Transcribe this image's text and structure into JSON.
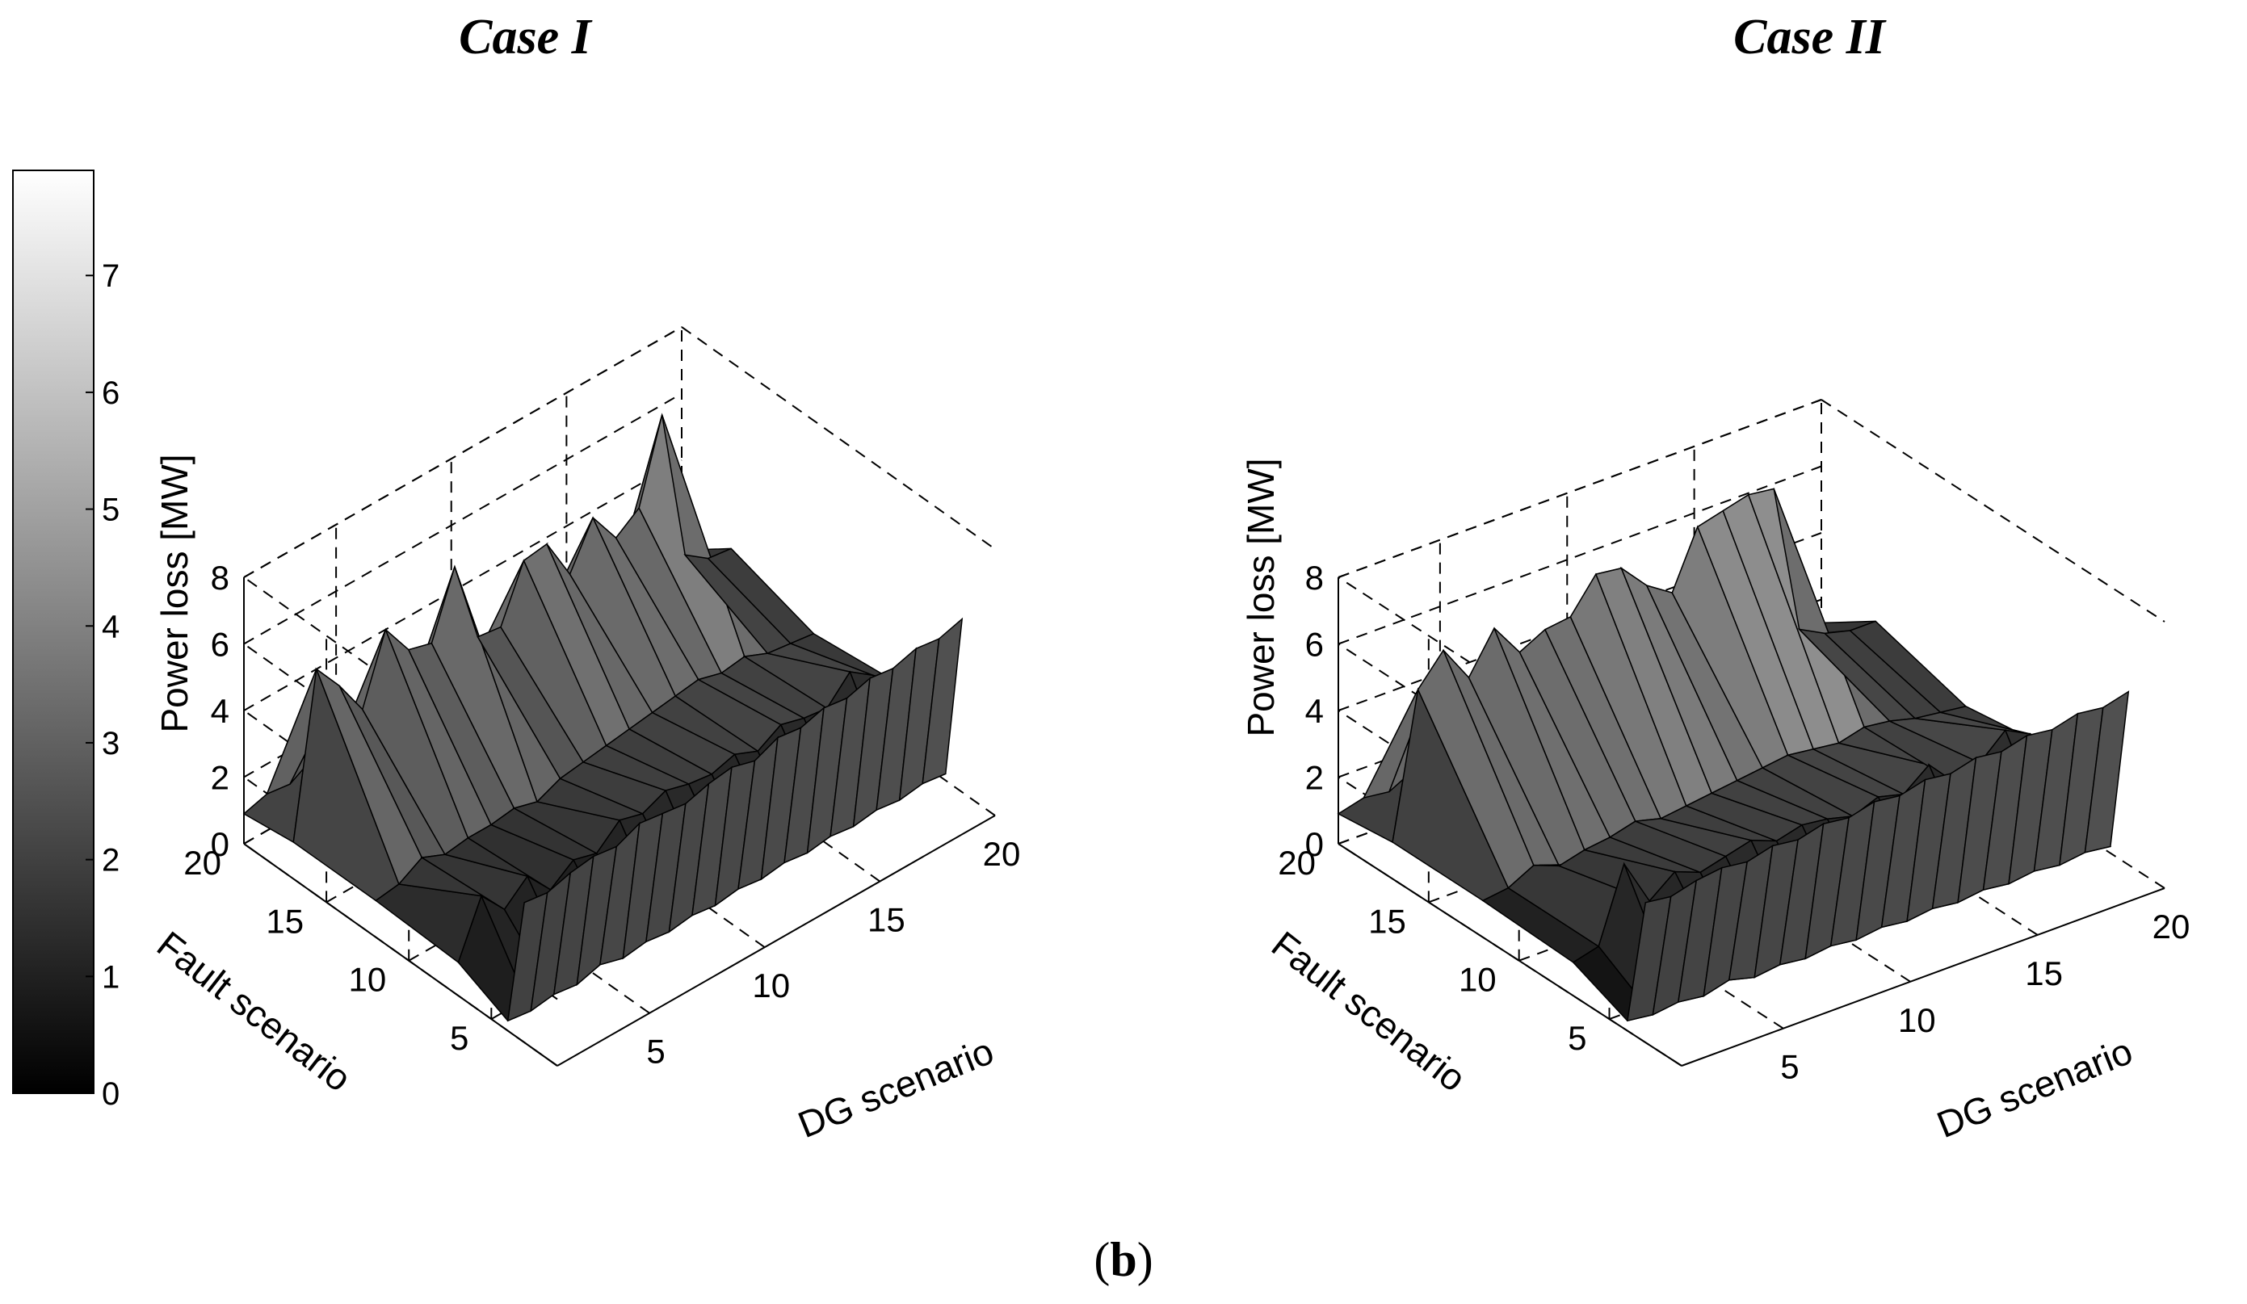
{
  "figure": {
    "label_open": "(",
    "label_letter": "b",
    "label_close": ")"
  },
  "colorbar": {
    "ticks": [
      "0",
      "1",
      "2",
      "3",
      "4",
      "5",
      "6",
      "7"
    ],
    "range": [
      0,
      7.9
    ],
    "colormap": "gray"
  },
  "chart_data": [
    {
      "type": "surface",
      "title": "Case I",
      "xlabel": "DG scenario",
      "ylabel": "Fault scenario",
      "zlabel": "Power loss [MW]",
      "xlim": [
        1,
        20
      ],
      "ylim": [
        1,
        20
      ],
      "zlim": [
        0,
        8
      ],
      "xticks": [
        "5",
        "10",
        "15",
        "20"
      ],
      "yticks": [
        "5",
        "10",
        "15",
        "20"
      ],
      "zticks": [
        "0",
        "2",
        "4",
        "6",
        "8"
      ],
      "grid": true,
      "fault_scenario_rows": [
        {
          "fault": 3,
          "values": [
            4.2,
            4.1,
            4.3,
            4.4,
            4.3,
            4.6,
            4.5,
            4.4,
            4.6,
            4.7,
            4.5,
            4.8,
            4.7,
            4.9,
            4.8,
            5.0,
            4.9,
            5.1,
            5.0,
            5.2
          ]
        },
        {
          "fault": 4,
          "values": [
            0.3,
            0.2,
            0.3,
            0.2,
            0.4,
            0.2,
            0.3,
            0.2,
            0.3,
            0.2,
            0.3,
            0.2,
            0.3,
            0.2,
            0.3,
            0.2,
            0.3,
            0.2,
            0.3,
            0.2
          ]
        },
        {
          "fault": 7,
          "values": [
            1.0,
            2.6,
            1.8,
            2.4,
            1.6,
            2.1,
            1.9,
            2.5,
            2.3,
            2.6,
            2.4,
            2.3,
            2.5,
            2.2,
            2.6,
            2.4,
            2.3,
            3.0,
            2.5,
            1.9
          ]
        },
        {
          "fault": 12,
          "values": [
            1.1,
            1.2,
            1.6,
            1.3,
            1.4,
            1.4,
            1.5,
            1.3,
            1.6,
            1.7,
            1.8,
            1.9,
            2.0,
            2.1,
            2.2,
            2.0,
            2.1,
            1.8,
            1.7,
            1.6
          ]
        },
        {
          "fault": 17,
          "values": [
            1.1,
            5.9,
            5.0,
            3.9,
            5.9,
            4.9,
            4.7,
            6.6,
            4.1,
            4.0,
            5.6,
            5.7,
            4.4,
            5.7,
            4.7,
            5.2,
            7.6,
            3.0,
            2.5,
            2.4
          ]
        },
        {
          "fault": 20,
          "values": [
            0.9,
            1.1,
            1.0,
            1.4,
            1.2,
            1.5,
            1.3,
            1.2,
            1.4,
            1.3,
            1.5,
            1.4,
            1.3,
            1.6,
            1.4,
            1.5,
            1.3,
            1.4,
            1.2,
            1.3
          ]
        }
      ]
    },
    {
      "type": "surface",
      "title": "Case II",
      "xlabel": "DG scenario",
      "ylabel": "Fault scenario",
      "zlabel": "Power loss [MW]",
      "xlim": [
        1,
        20
      ],
      "ylim": [
        1,
        20
      ],
      "zlim": [
        0,
        8
      ],
      "xticks": [
        "5",
        "10",
        "15",
        "20"
      ],
      "yticks": [
        "5",
        "10",
        "15",
        "20"
      ],
      "zticks": [
        "0",
        "2",
        "4",
        "6",
        "8"
      ],
      "grid": true,
      "fault_scenario_rows": [
        {
          "fault": 3,
          "values": [
            4.2,
            4.1,
            4.3,
            4.4,
            4.3,
            4.5,
            4.4,
            4.6,
            4.5,
            4.7,
            4.6,
            4.8,
            4.7,
            4.9,
            4.8,
            5.0,
            4.9,
            5.1,
            5.0,
            5.2
          ]
        },
        {
          "fault": 4,
          "values": [
            0.3,
            0.2,
            0.3,
            0.2,
            0.4,
            0.2,
            0.3,
            0.2,
            0.3,
            0.2,
            0.3,
            0.2,
            0.3,
            0.2,
            0.3,
            0.2,
            0.3,
            0.2,
            0.3,
            0.2
          ]
        },
        {
          "fault": 7,
          "values": [
            1.0,
            1.2,
            3.4,
            2.0,
            2.6,
            2.3,
            2.5,
            2.7,
            2.4,
            2.6,
            2.5,
            2.3,
            2.6,
            2.4,
            3.0,
            2.2,
            2.5,
            3.2,
            2.8,
            2.0
          ]
        },
        {
          "fault": 12,
          "values": [
            1.1,
            1.2,
            1.6,
            1.3,
            1.5,
            1.6,
            1.8,
            1.6,
            1.7,
            1.8,
            1.9,
            2.0,
            2.1,
            2.0,
            1.9,
            2.1,
            2.0,
            1.8,
            1.7,
            1.6
          ]
        },
        {
          "fault": 17,
          "values": [
            1.1,
            5.4,
            6.3,
            5.2,
            6.4,
            5.4,
            5.8,
            5.9,
            6.9,
            6.8,
            6.0,
            5.5,
            7.2,
            7.4,
            7.6,
            7.5,
            3.0,
            2.6,
            2.4,
            2.4
          ]
        },
        {
          "fault": 20,
          "values": [
            0.9,
            1.1,
            1.0,
            1.4,
            1.2,
            1.5,
            1.3,
            1.2,
            1.4,
            1.3,
            1.5,
            1.4,
            1.3,
            1.6,
            1.4,
            1.5,
            1.3,
            1.4,
            1.2,
            1.3
          ]
        }
      ]
    }
  ]
}
